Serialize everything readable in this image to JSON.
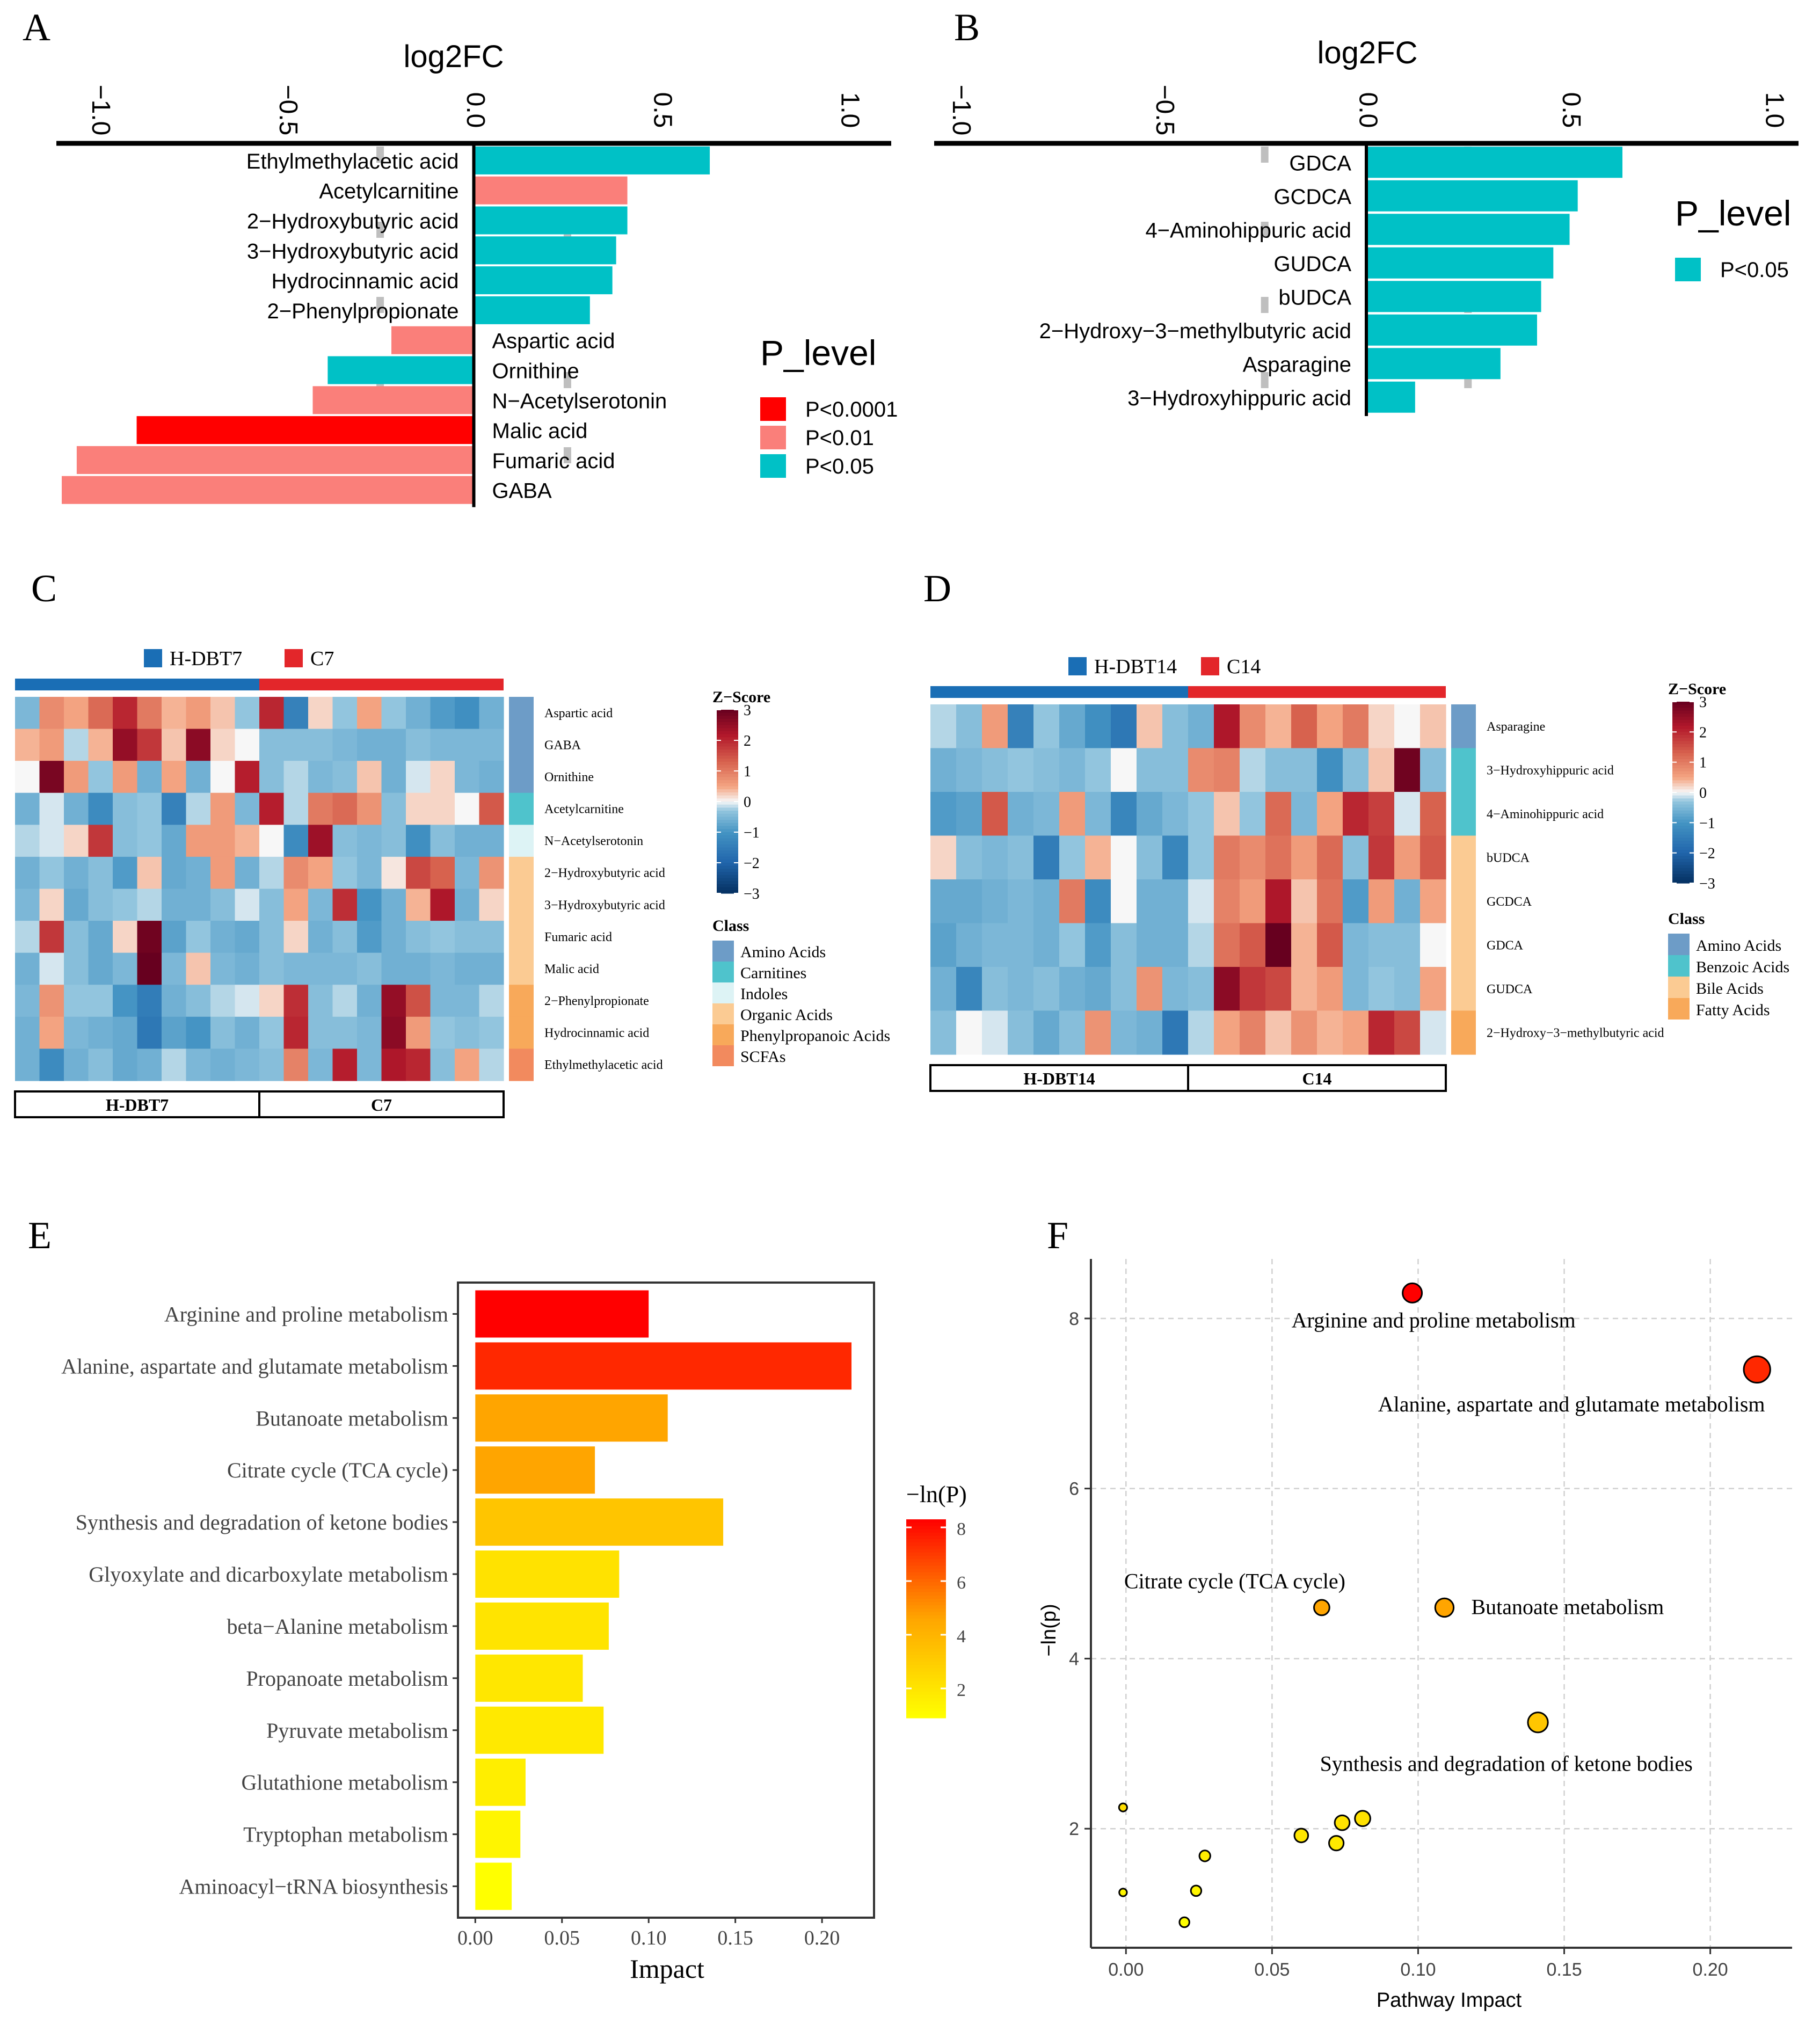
{
  "colors": {
    "p0001": "#FF0000",
    "p01": "#FA7F7A",
    "p05": "#00C1C6",
    "grp_h": "#1A6EB5",
    "grp_c": "#E3262A",
    "grid": "#BFBFBF"
  },
  "chart_data": [
    {
      "panel": "A",
      "type": "bar",
      "orientation": "horizontal",
      "title": "log2FC",
      "xlim": [
        -1.1,
        1.1
      ],
      "x_ticks": [
        "−1.0",
        "−0.5",
        "0.0",
        "0.5",
        "1.0"
      ],
      "x_tick_values": [
        -1.0,
        -0.5,
        0.0,
        0.5,
        1.0
      ],
      "legend_title": "P_level",
      "legend": [
        {
          "label": "P<0.0001",
          "color": "#FF0000"
        },
        {
          "label": "P<0.01",
          "color": "#FA7F7A"
        },
        {
          "label": "P<0.05",
          "color": "#00C1C6"
        }
      ],
      "bars": [
        {
          "label": "Ethylmethylacetic acid",
          "value": 0.63,
          "level": "P<0.05"
        },
        {
          "label": "Acetylcarnitine",
          "value": 0.41,
          "level": "P<0.01"
        },
        {
          "label": "2−Hydroxybutyric acid",
          "value": 0.41,
          "level": "P<0.05"
        },
        {
          "label": "3−Hydroxybutyric acid",
          "value": 0.38,
          "level": "P<0.05"
        },
        {
          "label": "Hydrocinnamic acid",
          "value": 0.37,
          "level": "P<0.05"
        },
        {
          "label": "2−Phenylpropionate",
          "value": 0.31,
          "level": "P<0.05"
        },
        {
          "label": "Aspartic acid",
          "value": -0.22,
          "level": "P<0.01"
        },
        {
          "label": "Ornithine",
          "value": -0.39,
          "level": "P<0.05"
        },
        {
          "label": "N−Acetylserotonin",
          "value": -0.43,
          "level": "P<0.01"
        },
        {
          "label": "Malic acid",
          "value": -0.9,
          "level": "P<0.0001"
        },
        {
          "label": "Fumaric acid",
          "value": -1.06,
          "level": "P<0.01"
        },
        {
          "label": "GABA",
          "value": -1.1,
          "level": "P<0.01"
        }
      ]
    },
    {
      "panel": "B",
      "type": "bar",
      "orientation": "horizontal",
      "title": "log2FC",
      "xlim": [
        -1.05,
        1.05
      ],
      "x_ticks": [
        "−1.0",
        "−0.5",
        "0.0",
        "0.5",
        "1.0"
      ],
      "x_tick_values": [
        -1.0,
        -0.5,
        0.0,
        0.5,
        1.0
      ],
      "legend_title": "P_level",
      "legend": [
        {
          "label": "P<0.05",
          "color": "#00C1C6"
        }
      ],
      "bars": [
        {
          "label": "GDCA",
          "value": 0.63,
          "level": "P<0.05"
        },
        {
          "label": "GCDCA",
          "value": 0.52,
          "level": "P<0.05"
        },
        {
          "label": "4−Aminohippuric acid",
          "value": 0.5,
          "level": "P<0.05"
        },
        {
          "label": "GUDCA",
          "value": 0.46,
          "level": "P<0.05"
        },
        {
          "label": "bUDCA",
          "value": 0.43,
          "level": "P<0.05"
        },
        {
          "label": "2−Hydroxy−3−methylbutyric acid",
          "value": 0.42,
          "level": "P<0.05"
        },
        {
          "label": "Asparagine",
          "value": 0.33,
          "level": "P<0.05"
        },
        {
          "label": "3−Hydroxyhippuric acid",
          "value": 0.12,
          "level": "P<0.05"
        }
      ]
    },
    {
      "panel": "C",
      "type": "heatmap",
      "groups": [
        "H-DBT7",
        "C7"
      ],
      "n_cols_per_group": 10,
      "rows": [
        "Aspartic acid",
        "GABA",
        "Ornithine",
        "Acetylcarnitine",
        "N−Acetylserotonin",
        "2−Hydroxybutyric acid",
        "3−Hydroxybutyric acid",
        "Fumaric acid",
        "Malic acid",
        "2−Phenylpropionate",
        "Hydrocinnamic acid",
        "Ethylmethylacetic acid"
      ],
      "row_class": [
        "Amino Acids",
        "Amino Acids",
        "Amino Acids",
        "Carnitines",
        "Indoles",
        "Organic Acids",
        "Organic Acids",
        "Organic Acids",
        "Organic Acids",
        "Phenylpropanoic Acids",
        "Phenylpropanoic Acids",
        "SCFAs"
      ],
      "values": [
        [
          -0.5,
          0.8,
          0.5,
          1.2,
          2.0,
          1.0,
          0.4,
          0.6,
          0.3,
          -0.3,
          2.0,
          -1.4,
          0.2,
          -0.3,
          0.5,
          -0.3,
          -0.6,
          -0.9,
          -1.1,
          -0.6
        ],
        [
          0.4,
          0.6,
          -0.2,
          0.4,
          2.5,
          1.8,
          0.3,
          2.6,
          0.2,
          0.0,
          -0.4,
          -0.4,
          -0.4,
          -0.5,
          -0.6,
          -0.6,
          -0.4,
          -0.5,
          -0.5,
          -0.5
        ],
        [
          0.0,
          2.8,
          0.6,
          -0.3,
          0.6,
          -0.6,
          0.5,
          -0.6,
          0.0,
          2.1,
          -0.4,
          -0.2,
          -0.5,
          -0.4,
          0.3,
          -0.6,
          -0.1,
          0.2,
          -0.5,
          -0.6
        ],
        [
          -0.6,
          -0.1,
          -0.6,
          -1.2,
          -0.4,
          -0.3,
          -1.4,
          -0.2,
          0.6,
          -0.5,
          2.1,
          -0.2,
          1.0,
          1.2,
          0.7,
          -0.4,
          0.2,
          0.2,
          0.0,
          1.4
        ],
        [
          -0.2,
          -0.1,
          0.2,
          1.8,
          -0.4,
          -0.3,
          -0.7,
          0.6,
          0.6,
          0.4,
          0.0,
          -1.2,
          2.4,
          -0.4,
          -0.5,
          -0.4,
          -1.1,
          -0.4,
          -0.6,
          -0.6
        ],
        [
          -0.6,
          -0.3,
          -0.6,
          -0.4,
          -0.9,
          0.3,
          -0.7,
          -0.6,
          0.6,
          -0.6,
          -0.2,
          0.8,
          0.5,
          -0.3,
          -0.5,
          0.1,
          1.6,
          1.3,
          -0.5,
          0.7
        ],
        [
          -0.5,
          0.2,
          -0.7,
          -0.4,
          -0.3,
          -0.2,
          -0.6,
          -0.6,
          -0.4,
          -0.1,
          -0.4,
          0.5,
          -0.5,
          1.9,
          -1.0,
          -0.6,
          0.4,
          2.2,
          -0.6,
          0.2
        ],
        [
          -0.2,
          1.8,
          -0.4,
          -0.7,
          0.2,
          2.9,
          -0.8,
          -0.3,
          -0.6,
          -0.7,
          -0.4,
          0.2,
          -0.6,
          -0.4,
          -0.9,
          -0.6,
          -0.4,
          -0.3,
          -0.4,
          -0.4
        ],
        [
          -0.6,
          -0.1,
          -0.4,
          -0.7,
          -0.5,
          3.0,
          -0.5,
          0.3,
          -0.5,
          -0.6,
          -0.4,
          -0.5,
          -0.5,
          -0.5,
          -0.4,
          -0.6,
          -0.6,
          -0.5,
          -0.6,
          -0.6
        ],
        [
          -0.5,
          0.7,
          -0.3,
          -0.3,
          -1.0,
          -1.5,
          -0.6,
          -0.4,
          -0.2,
          -0.1,
          0.2,
          1.9,
          -0.4,
          -0.2,
          -0.6,
          2.5,
          1.5,
          -0.5,
          -0.5,
          -0.2
        ],
        [
          -0.6,
          0.5,
          -0.5,
          -0.6,
          -0.7,
          -1.6,
          -0.8,
          -1.0,
          -0.4,
          -0.6,
          -0.3,
          2.0,
          -0.4,
          -0.4,
          -0.5,
          2.6,
          0.6,
          -0.3,
          -0.4,
          -0.3
        ],
        [
          -0.6,
          -1.2,
          -0.6,
          -0.4,
          -0.7,
          -0.6,
          -0.2,
          -0.5,
          -0.6,
          -0.5,
          -0.4,
          0.9,
          -0.5,
          2.1,
          -0.5,
          2.2,
          2.0,
          -0.4,
          0.5,
          -0.2
        ]
      ],
      "legend_title": "Z−Score",
      "zscore_ticks": [
        "3",
        "2",
        "1",
        "0",
        "−1",
        "−2",
        "−3"
      ],
      "zscore_tick_values": [
        3,
        2,
        1,
        0,
        -1,
        -2,
        -3
      ],
      "class_title": "Class",
      "classes": [
        {
          "name": "Amino Acids",
          "color": "#6D9CC7"
        },
        {
          "name": "Carnitines",
          "color": "#4FC3CC"
        },
        {
          "name": "Indoles",
          "color": "#DDF3F5"
        },
        {
          "name": "Organic Acids",
          "color": "#FBCB93"
        },
        {
          "name": "Phenylpropanoic Acids",
          "color": "#F8A95A"
        },
        {
          "name": "SCFAs",
          "color": "#F28A5E"
        }
      ]
    },
    {
      "panel": "D",
      "type": "heatmap",
      "groups": [
        "H-DBT14",
        "C14"
      ],
      "n_cols_per_group": 10,
      "rows": [
        "Asparagine",
        "3−Hydroxyhippuric acid",
        "4−Aminohippuric acid",
        "bUDCA",
        "GCDCA",
        "GDCA",
        "GUDCA",
        "2−Hydroxy−3−methylbutyric acid"
      ],
      "row_class": [
        "Amino Acids",
        "Benzoic Acids",
        "Benzoic Acids",
        "Bile Acids",
        "Bile Acids",
        "Bile Acids",
        "Bile Acids",
        "Fatty Acids"
      ],
      "values": [
        [
          -0.2,
          -0.4,
          0.6,
          -1.4,
          -0.3,
          -0.7,
          -1.1,
          -1.6,
          0.3,
          -0.4,
          -0.6,
          2.2,
          0.8,
          0.4,
          1.3,
          0.5,
          1.0,
          0.2,
          0.0,
          0.3
        ],
        [
          -0.6,
          -0.5,
          -0.4,
          -0.3,
          -0.4,
          -0.5,
          -0.3,
          0.0,
          -0.4,
          -0.4,
          0.8,
          0.9,
          -0.2,
          -0.4,
          -0.4,
          -1.1,
          -0.4,
          0.3,
          2.9,
          -0.4
        ],
        [
          -0.9,
          -0.8,
          1.4,
          -0.6,
          -0.5,
          0.6,
          -0.5,
          -1.3,
          -0.7,
          -0.5,
          -0.3,
          0.3,
          -0.3,
          1.2,
          -0.5,
          0.5,
          2.0,
          1.7,
          -0.1,
          1.3
        ],
        [
          0.2,
          -0.4,
          -0.5,
          -0.4,
          -1.5,
          -0.3,
          0.4,
          0.0,
          -0.4,
          -1.3,
          -0.3,
          1.0,
          0.8,
          1.1,
          0.6,
          1.2,
          -0.4,
          1.8,
          0.6,
          1.4
        ],
        [
          -0.7,
          -0.7,
          -0.6,
          -0.5,
          -0.6,
          1.0,
          -1.2,
          0.0,
          -0.6,
          -0.6,
          -0.1,
          0.9,
          0.6,
          2.2,
          0.3,
          1.1,
          -0.9,
          0.6,
          -0.6,
          0.5
        ],
        [
          -0.8,
          -0.6,
          -0.5,
          -0.5,
          -0.6,
          -0.3,
          -0.9,
          -0.4,
          -0.6,
          -0.6,
          -0.2,
          1.1,
          1.4,
          3.0,
          0.4,
          1.4,
          -0.5,
          -0.4,
          -0.4,
          0.0
        ],
        [
          -0.6,
          -1.3,
          -0.4,
          -0.5,
          -0.4,
          -0.6,
          -0.7,
          -0.4,
          0.7,
          -0.5,
          -0.4,
          2.6,
          1.8,
          1.6,
          0.4,
          0.6,
          -0.5,
          -0.3,
          -0.4,
          0.5
        ],
        [
          -0.4,
          0.0,
          -0.1,
          -0.4,
          -0.7,
          -0.4,
          0.7,
          -0.5,
          -0.6,
          -1.6,
          -0.2,
          0.5,
          0.9,
          0.3,
          0.7,
          0.4,
          0.5,
          2.0,
          1.6,
          -0.1
        ]
      ],
      "legend_title": "Z−Score",
      "zscore_ticks": [
        "3",
        "2",
        "1",
        "0",
        "−1",
        "−2",
        "−3"
      ],
      "zscore_tick_values": [
        3,
        2,
        1,
        0,
        -1,
        -2,
        -3
      ],
      "class_title": "Class",
      "classes": [
        {
          "name": "Amino Acids",
          "color": "#6D9CC7"
        },
        {
          "name": "Benzoic Acids",
          "color": "#4FC3CC"
        },
        {
          "name": "Bile Acids",
          "color": "#FBCB93"
        },
        {
          "name": "Fatty Acids",
          "color": "#F8A95A"
        }
      ]
    },
    {
      "panel": "E",
      "type": "bar",
      "orientation": "horizontal",
      "xlabel": "Impact",
      "xlim": [
        -0.01,
        0.23
      ],
      "x_ticks": [
        "0.00",
        "0.05",
        "0.10",
        "0.15",
        "0.20"
      ],
      "x_tick_values": [
        0.0,
        0.05,
        0.1,
        0.15,
        0.2
      ],
      "legend_title": "−ln(P)",
      "legend_ticks": [
        "8",
        "6",
        "4",
        "2"
      ],
      "legend_tick_values": [
        8,
        6,
        4,
        2
      ],
      "color_range": [
        0.9,
        8.3
      ],
      "bars": [
        {
          "label": "Arginine and proline metabolism",
          "impact": 0.1,
          "neglnp": 8.3
        },
        {
          "label": "Alanine, aspartate and glutamate metabolism",
          "impact": 0.217,
          "neglnp": 7.4
        },
        {
          "label": "Butanoate metabolism",
          "impact": 0.111,
          "neglnp": 4.6
        },
        {
          "label": "Citrate cycle (TCA cycle)",
          "impact": 0.069,
          "neglnp": 4.6
        },
        {
          "label": "Synthesis and degradation of ketone bodies",
          "impact": 0.143,
          "neglnp": 3.3
        },
        {
          "label": "Glyoxylate and dicarboxylate metabolism",
          "impact": 0.083,
          "neglnp": 2.1
        },
        {
          "label": "beta−Alanine metabolism",
          "impact": 0.077,
          "neglnp": 2.0
        },
        {
          "label": "Propanoate metabolism",
          "impact": 0.062,
          "neglnp": 1.9
        },
        {
          "label": "Pyruvate metabolism",
          "impact": 0.074,
          "neglnp": 1.8
        },
        {
          "label": "Glutathione metabolism",
          "impact": 0.029,
          "neglnp": 1.6
        },
        {
          "label": "Tryptophan metabolism",
          "impact": 0.026,
          "neglnp": 1.3
        },
        {
          "label": "Aminoacyl−tRNA biosynthesis",
          "impact": 0.021,
          "neglnp": 0.9
        }
      ]
    },
    {
      "panel": "F",
      "type": "scatter",
      "xlabel": "Pathway Impact",
      "ylabel": "−ln(p)",
      "xlim": [
        -0.012,
        0.228
      ],
      "ylim": [
        0.6,
        8.7
      ],
      "x_ticks": [
        "0.00",
        "0.05",
        "0.10",
        "0.15",
        "0.20"
      ],
      "x_tick_values": [
        0.0,
        0.05,
        0.1,
        0.15,
        0.2
      ],
      "y_ticks": [
        "2",
        "4",
        "6",
        "8"
      ],
      "y_tick_values": [
        2,
        4,
        6,
        8
      ],
      "grid": true,
      "points": [
        {
          "x": 0.098,
          "y": 8.3,
          "label": "Arginine and proline metabolism"
        },
        {
          "x": 0.216,
          "y": 7.4,
          "label": "Alanine, aspartate and glutamate metabolism"
        },
        {
          "x": 0.067,
          "y": 4.6,
          "label": "Citrate cycle (TCA cycle)"
        },
        {
          "x": 0.109,
          "y": 4.6,
          "label": "Butanoate metabolism"
        },
        {
          "x": 0.141,
          "y": 3.25,
          "label": "Synthesis and degradation of ketone bodies"
        },
        {
          "x": 0.081,
          "y": 2.12,
          "label": ""
        },
        {
          "x": 0.074,
          "y": 2.07,
          "label": ""
        },
        {
          "x": 0.06,
          "y": 1.92,
          "label": ""
        },
        {
          "x": 0.072,
          "y": 1.83,
          "label": ""
        },
        {
          "x": 0.027,
          "y": 1.68,
          "label": ""
        },
        {
          "x": 0.024,
          "y": 1.27,
          "label": ""
        },
        {
          "x": 0.02,
          "y": 0.9,
          "label": ""
        },
        {
          "x": -0.001,
          "y": 2.25,
          "label": ""
        },
        {
          "x": -0.001,
          "y": 1.25,
          "label": ""
        }
      ]
    }
  ]
}
